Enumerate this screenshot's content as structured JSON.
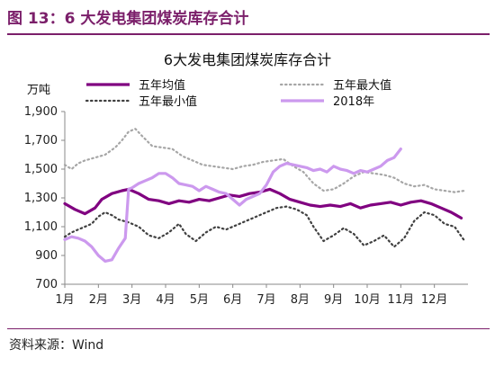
{
  "figure": {
    "label": "图 13：",
    "title": "6 大发电集团煤炭库存合计",
    "source": "资料来源：Wind"
  },
  "colors": {
    "brand": "#7b1f6a",
    "five_year_avg": "#800080",
    "five_year_max": "#a6a6a6",
    "five_year_min": "#404040",
    "y2018": "#cc99ee"
  },
  "chart_data": {
    "type": "line",
    "title": "6大发电集团煤炭库存合计",
    "ylabel": "万吨",
    "xlabel": "",
    "ylim": [
      700,
      1900
    ],
    "yticks": [
      "1,900",
      "1,700",
      "1,500",
      "1,300",
      "1,100",
      "900",
      "700"
    ],
    "categories": [
      "1月",
      "2月",
      "3月",
      "4月",
      "5月",
      "6月",
      "7月",
      "8月",
      "9月",
      "10月",
      "11月",
      "12月"
    ],
    "legend": [
      {
        "name": "五年均值",
        "series": 0
      },
      {
        "name": "五年最大值",
        "series": 1
      },
      {
        "name": "五年最小值",
        "series": 2
      },
      {
        "name": "2018年",
        "series": 3
      }
    ],
    "series": [
      {
        "name": "五年均值",
        "style": "solid",
        "color": "#800080",
        "x": [
          1.0,
          1.3,
          1.6,
          1.9,
          2.1,
          2.4,
          2.7,
          2.9,
          3.2,
          3.5,
          3.8,
          4.1,
          4.4,
          4.7,
          5.0,
          5.3,
          5.6,
          5.9,
          6.2,
          6.5,
          6.8,
          7.1,
          7.4,
          7.7,
          8.0,
          8.3,
          8.6,
          8.9,
          9.2,
          9.5,
          9.8,
          10.1,
          10.4,
          10.7,
          11.0,
          11.3,
          11.6,
          11.9,
          12.2,
          12.5,
          12.8
        ],
        "y": [
          1260,
          1220,
          1190,
          1230,
          1290,
          1330,
          1350,
          1360,
          1330,
          1290,
          1280,
          1260,
          1280,
          1270,
          1290,
          1280,
          1300,
          1320,
          1310,
          1330,
          1340,
          1360,
          1330,
          1290,
          1270,
          1250,
          1240,
          1250,
          1240,
          1260,
          1230,
          1250,
          1260,
          1270,
          1250,
          1270,
          1280,
          1260,
          1230,
          1200,
          1160
        ]
      },
      {
        "name": "五年最大值",
        "style": "dotted",
        "color": "#a6a6a6",
        "x": [
          1.0,
          1.2,
          1.4,
          1.6,
          1.9,
          2.2,
          2.5,
          2.7,
          2.9,
          3.1,
          3.3,
          3.6,
          3.9,
          4.2,
          4.5,
          4.8,
          5.1,
          5.4,
          5.7,
          6.0,
          6.3,
          6.6,
          6.9,
          7.2,
          7.5,
          7.8,
          8.1,
          8.4,
          8.7,
          9.0,
          9.3,
          9.6,
          9.9,
          10.2,
          10.5,
          10.8,
          11.1,
          11.4,
          11.7,
          12.0,
          12.3,
          12.6,
          12.9
        ],
        "y": [
          1530,
          1500,
          1540,
          1560,
          1580,
          1600,
          1650,
          1700,
          1760,
          1780,
          1730,
          1660,
          1650,
          1640,
          1590,
          1560,
          1530,
          1520,
          1510,
          1500,
          1520,
          1530,
          1550,
          1560,
          1570,
          1520,
          1480,
          1400,
          1350,
          1360,
          1400,
          1450,
          1480,
          1470,
          1460,
          1440,
          1400,
          1380,
          1390,
          1360,
          1350,
          1340,
          1350
        ]
      },
      {
        "name": "五年最小值",
        "style": "dotted",
        "color": "#404040",
        "x": [
          1.0,
          1.2,
          1.5,
          1.8,
          2.0,
          2.2,
          2.4,
          2.6,
          2.9,
          3.2,
          3.5,
          3.8,
          4.1,
          4.4,
          4.6,
          4.9,
          5.2,
          5.5,
          5.8,
          6.1,
          6.4,
          6.7,
          7.0,
          7.3,
          7.6,
          7.9,
          8.2,
          8.4,
          8.7,
          9.0,
          9.3,
          9.6,
          9.9,
          10.2,
          10.5,
          10.8,
          11.1,
          11.4,
          11.7,
          12.0,
          12.3,
          12.6,
          12.9
        ],
        "y": [
          1030,
          1060,
          1090,
          1120,
          1170,
          1200,
          1180,
          1150,
          1130,
          1100,
          1040,
          1020,
          1060,
          1120,
          1050,
          1000,
          1060,
          1100,
          1080,
          1110,
          1140,
          1170,
          1200,
          1230,
          1240,
          1220,
          1180,
          1100,
          1000,
          1040,
          1090,
          1050,
          970,
          1000,
          1040,
          960,
          1020,
          1140,
          1200,
          1180,
          1120,
          1100,
          1000
        ]
      },
      {
        "name": "2018年",
        "style": "solid",
        "color": "#cc99ee",
        "x": [
          1.0,
          1.2,
          1.4,
          1.6,
          1.8,
          2.0,
          2.2,
          2.4,
          2.6,
          2.8,
          2.9,
          3.0,
          3.2,
          3.4,
          3.6,
          3.8,
          4.0,
          4.2,
          4.4,
          4.6,
          4.8,
          5.0,
          5.2,
          5.4,
          5.6,
          5.8,
          6.0,
          6.2,
          6.4,
          6.6,
          6.8,
          7.0,
          7.2,
          7.4,
          7.6,
          7.8,
          8.0,
          8.2,
          8.4,
          8.6,
          8.8,
          9.0,
          9.2,
          9.4,
          9.6,
          9.8,
          10.0,
          10.2,
          10.4,
          10.6,
          10.8,
          11.0
        ],
        "y": [
          1010,
          1030,
          1020,
          1000,
          960,
          900,
          860,
          870,
          950,
          1020,
          1360,
          1370,
          1400,
          1420,
          1440,
          1470,
          1470,
          1440,
          1400,
          1390,
          1380,
          1350,
          1380,
          1360,
          1340,
          1330,
          1290,
          1250,
          1290,
          1310,
          1330,
          1390,
          1480,
          1520,
          1540,
          1530,
          1520,
          1510,
          1490,
          1500,
          1480,
          1520,
          1500,
          1490,
          1470,
          1490,
          1480,
          1500,
          1520,
          1560,
          1580,
          1640
        ]
      }
    ]
  }
}
